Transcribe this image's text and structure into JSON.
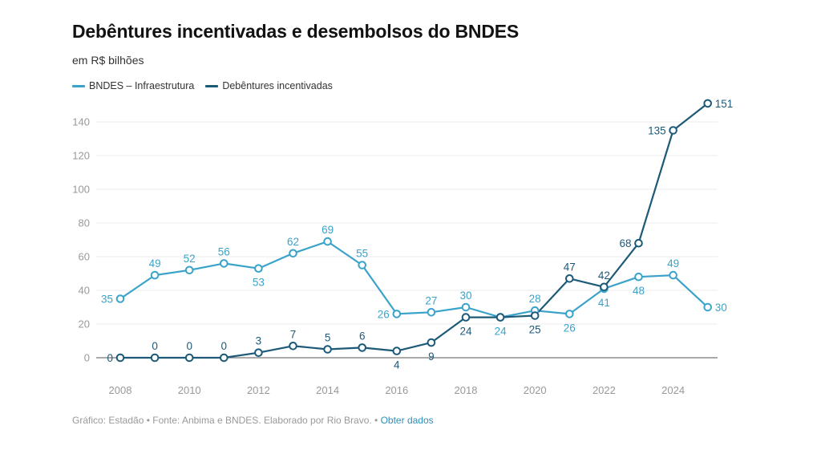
{
  "header": {
    "title": "Debêntures incentivadas e desembolsos do BNDES",
    "subtitle": "em R$ bilhões"
  },
  "footer": {
    "source": "Gráfico: Estadão • Fonte: Anbima e BNDES. Elaborado por Rio Bravo. • ",
    "link": "Obter dados"
  },
  "chart_data": {
    "type": "line",
    "title": "Debêntures incentivadas e desembolsos do BNDES",
    "subtitle": "em R$ bilhões",
    "xlabel": "",
    "ylabel": "",
    "x": [
      2008,
      2009,
      2010,
      2011,
      2012,
      2013,
      2014,
      2015,
      2016,
      2017,
      2018,
      2019,
      2020,
      2021,
      2022,
      2023,
      2024,
      2025
    ],
    "x_ticks": [
      "2008",
      "2010",
      "2012",
      "2014",
      "2016",
      "2018",
      "2020",
      "2022",
      "2024"
    ],
    "y_ticks": [
      "0",
      "20",
      "40",
      "60",
      "80",
      "100",
      "120",
      "140"
    ],
    "ylim": [
      0,
      150
    ],
    "xlim": [
      2008,
      2025
    ],
    "grid": true,
    "legend_position": "top-left",
    "series": [
      {
        "name": "BNDES – Infraestrutura",
        "color": "#3ba3c9",
        "values": [
          35,
          49,
          52,
          56,
          53,
          62,
          69,
          55,
          26,
          27,
          30,
          24,
          28,
          26,
          41,
          48,
          49,
          30
        ],
        "label_pos": [
          "left",
          "above",
          "above",
          "above",
          "below",
          "above",
          "above",
          "above",
          "left",
          "above",
          "above",
          "below",
          "above",
          "below",
          "below",
          "below",
          "above",
          "right"
        ]
      },
      {
        "name": "Debêntures incentivadas",
        "color": "#1c5a78",
        "values": [
          0,
          0,
          0,
          0,
          3,
          7,
          5,
          6,
          4,
          9,
          24,
          24,
          25,
          47,
          42,
          68,
          135,
          151
        ],
        "label_pos": [
          "left",
          "above",
          "above",
          "above",
          "above",
          "above",
          "above",
          "above",
          "below",
          "below",
          "below",
          "none",
          "below",
          "above",
          "above",
          "left",
          "left",
          "right"
        ]
      }
    ]
  }
}
